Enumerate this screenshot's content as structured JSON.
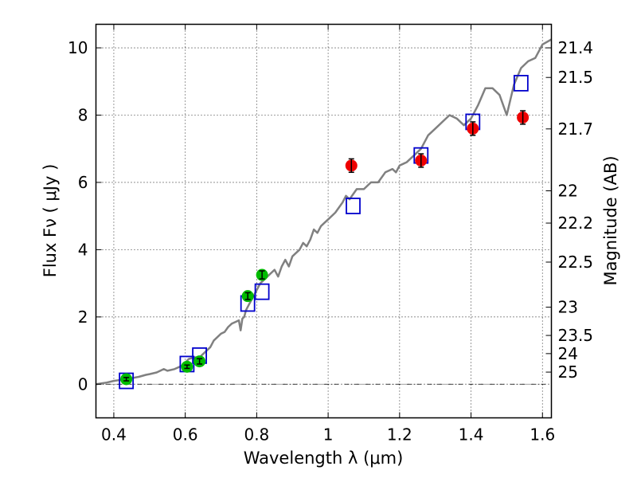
{
  "chart_data": {
    "type": "scatter",
    "title": "",
    "xlabel": "Wavelength  λ (μm)",
    "ylabel": "Flux  Fν  ( μJy )",
    "ylabel_right": "Magnitude (AB)",
    "xlim": [
      0.35,
      1.625
    ],
    "ylim": [
      -1.0,
      10.7
    ],
    "xticks": [
      0.4,
      0.6,
      0.8,
      1.0,
      1.2,
      1.4,
      1.6
    ],
    "xtick_labels": [
      "0.4",
      "0.6",
      "0.8",
      "1",
      "1.2",
      "1.4",
      "1.6"
    ],
    "yticks": [
      0,
      2,
      4,
      6,
      8,
      10
    ],
    "ytick_labels": [
      "0",
      "2",
      "4",
      "6",
      "8",
      "10"
    ],
    "right_ticks": [
      {
        "label": "21.4",
        "flux": 10.0
      },
      {
        "label": "21.5",
        "flux": 9.12
      },
      {
        "label": "21.7",
        "flux": 7.59
      },
      {
        "label": "22",
        "flux": 5.75
      },
      {
        "label": "22.2",
        "flux": 4.79
      },
      {
        "label": "22.5",
        "flux": 3.63
      },
      {
        "label": "23",
        "flux": 2.29
      },
      {
        "label": "23.5",
        "flux": 1.45
      },
      {
        "label": "24",
        "flux": 0.91
      },
      {
        "label": "25",
        "flux": 0.36
      }
    ],
    "grid": true,
    "zero_line": true,
    "colors": {
      "template": "#808080",
      "model": "#0000cc",
      "green": "#00bb00",
      "red": "#ee0000",
      "errorbar": "#000000"
    },
    "series": [
      {
        "style": "line",
        "x": [
          0.35,
          0.38,
          0.4,
          0.42,
          0.43,
          0.45,
          0.47,
          0.49,
          0.5,
          0.52,
          0.54,
          0.55,
          0.57,
          0.58,
          0.59,
          0.6,
          0.605,
          0.61,
          0.62,
          0.63,
          0.64,
          0.645,
          0.65,
          0.66,
          0.67,
          0.68,
          0.69,
          0.7,
          0.71,
          0.72,
          0.73,
          0.74,
          0.75,
          0.755,
          0.76,
          0.765,
          0.77,
          0.78,
          0.79,
          0.8,
          0.81,
          0.82,
          0.83,
          0.84,
          0.85,
          0.86,
          0.87,
          0.88,
          0.89,
          0.9,
          0.91,
          0.92,
          0.93,
          0.94,
          0.95,
          0.96,
          0.97,
          0.98,
          0.99,
          1.0,
          1.02,
          1.04,
          1.05,
          1.06,
          1.08,
          1.1,
          1.12,
          1.14,
          1.16,
          1.18,
          1.19,
          1.2,
          1.22,
          1.24,
          1.26,
          1.28,
          1.3,
          1.32,
          1.34,
          1.36,
          1.38,
          1.4,
          1.42,
          1.44,
          1.46,
          1.48,
          1.5,
          1.52,
          1.54,
          1.56,
          1.58,
          1.6,
          1.625
        ],
        "y": [
          0.0,
          0.05,
          0.1,
          0.13,
          0.15,
          0.18,
          0.22,
          0.28,
          0.3,
          0.35,
          0.45,
          0.4,
          0.45,
          0.5,
          0.55,
          0.6,
          0.7,
          0.75,
          0.78,
          0.8,
          0.6,
          0.85,
          0.9,
          1.0,
          1.1,
          1.3,
          1.4,
          1.5,
          1.55,
          1.7,
          1.8,
          1.85,
          1.9,
          1.6,
          1.95,
          2.0,
          2.2,
          2.4,
          2.6,
          2.8,
          3.0,
          3.1,
          3.2,
          3.3,
          3.4,
          3.2,
          3.5,
          3.7,
          3.5,
          3.8,
          3.9,
          4.0,
          4.2,
          4.1,
          4.3,
          4.6,
          4.5,
          4.7,
          4.8,
          4.9,
          5.1,
          5.4,
          5.6,
          5.5,
          5.8,
          5.8,
          6.0,
          6.0,
          6.3,
          6.4,
          6.3,
          6.5,
          6.6,
          6.8,
          7.0,
          7.4,
          7.6,
          7.8,
          8.0,
          7.9,
          7.7,
          7.9,
          8.3,
          8.8,
          8.8,
          8.6,
          8.0,
          8.9,
          9.4,
          9.6,
          9.7,
          10.1,
          10.25
        ]
      },
      {
        "style": "open-square",
        "x": [
          0.435,
          0.605,
          0.64,
          0.775,
          0.815,
          1.07,
          1.26,
          1.405,
          1.54
        ],
        "y": [
          0.1,
          0.6,
          0.85,
          2.4,
          2.75,
          5.3,
          6.8,
          7.8,
          8.95
        ]
      },
      {
        "style": "filled-circle-green",
        "x": [
          0.435,
          0.605,
          0.64,
          0.775,
          0.815
        ],
        "y": [
          0.15,
          0.52,
          0.68,
          2.62,
          3.25
        ],
        "yerr": [
          0.05,
          0.05,
          0.08,
          0.1,
          0.12
        ]
      },
      {
        "style": "filled-circle-red",
        "x": [
          1.065,
          1.26,
          1.405,
          1.545
        ],
        "y": [
          6.5,
          6.65,
          7.6,
          7.93
        ],
        "yerr": [
          0.2,
          0.2,
          0.2,
          0.2
        ]
      }
    ]
  }
}
